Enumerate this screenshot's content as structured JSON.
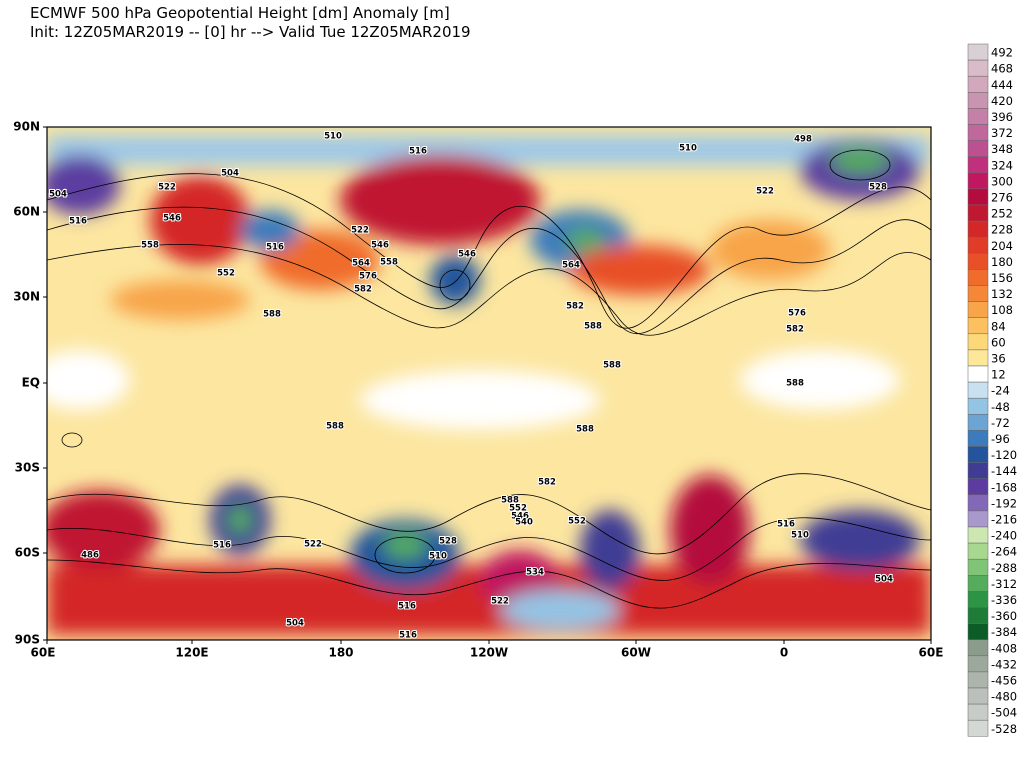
{
  "header": {
    "title": "ECMWF 500 hPa Geopotential Height [dm] Anomaly [m]",
    "subtitle": "Init: 12Z05MAR2019 -- [0] hr --> Valid Tue 12Z05MAR2019"
  },
  "map": {
    "lon_labels": [
      "60E",
      "120E",
      "180",
      "120W",
      "60W",
      "0",
      "60E"
    ],
    "lat_labels": [
      "90N",
      "60N",
      "30N",
      "EQ",
      "30S",
      "60S",
      "90S"
    ],
    "contour_labels": [
      "510",
      "516",
      "510",
      "498",
      "504",
      "504",
      "516",
      "522",
      "546",
      "558",
      "552",
      "516",
      "522",
      "546",
      "558",
      "564",
      "576",
      "582",
      "546",
      "564",
      "582",
      "588",
      "576",
      "582",
      "588",
      "588",
      "588",
      "588",
      "588",
      "582",
      "552",
      "522",
      "516",
      "510",
      "528",
      "534",
      "522",
      "516",
      "504",
      "504",
      "510",
      "516",
      "588",
      "552",
      "546",
      "540",
      "528",
      "522",
      "486",
      "516"
    ]
  },
  "colorbar": {
    "labels": [
      492,
      468,
      444,
      420,
      396,
      372,
      348,
      324,
      300,
      276,
      252,
      228,
      204,
      180,
      156,
      132,
      108,
      84,
      60,
      36,
      12,
      -24,
      -48,
      -72,
      -96,
      -120,
      -144,
      -168,
      -192,
      -216,
      -240,
      -264,
      -288,
      -312,
      -336,
      -360,
      -384,
      -408,
      -432,
      -456,
      -480,
      -504,
      -528
    ],
    "colors": [
      "#d8d0d4",
      "#d8bcc8",
      "#d4a8bc",
      "#c894b0",
      "#c480a8",
      "#c0689c",
      "#bc5090",
      "#c0307c",
      "#c01860",
      "#b40c3c",
      "#c01830",
      "#d42828",
      "#e03c28",
      "#e85028",
      "#f06c2c",
      "#f48838",
      "#f8a448",
      "#fcc060",
      "#fcd878",
      "#fce898",
      "#ffffff",
      "#c8e0f0",
      "#94c4e4",
      "#6ca4d4",
      "#3c7cbc",
      "#24549c",
      "#403c94",
      "#5c3ca0",
      "#8468b8",
      "#a898cc",
      "#cce8b0",
      "#a8d890",
      "#80c478",
      "#54ac5c",
      "#2c9444",
      "#1c7c38",
      "#0c5c28",
      "#8c9c8c",
      "#9ca89c",
      "#acb4ac",
      "#bcc0bc",
      "#c8ccc8",
      "#d4d8d4"
    ]
  }
}
